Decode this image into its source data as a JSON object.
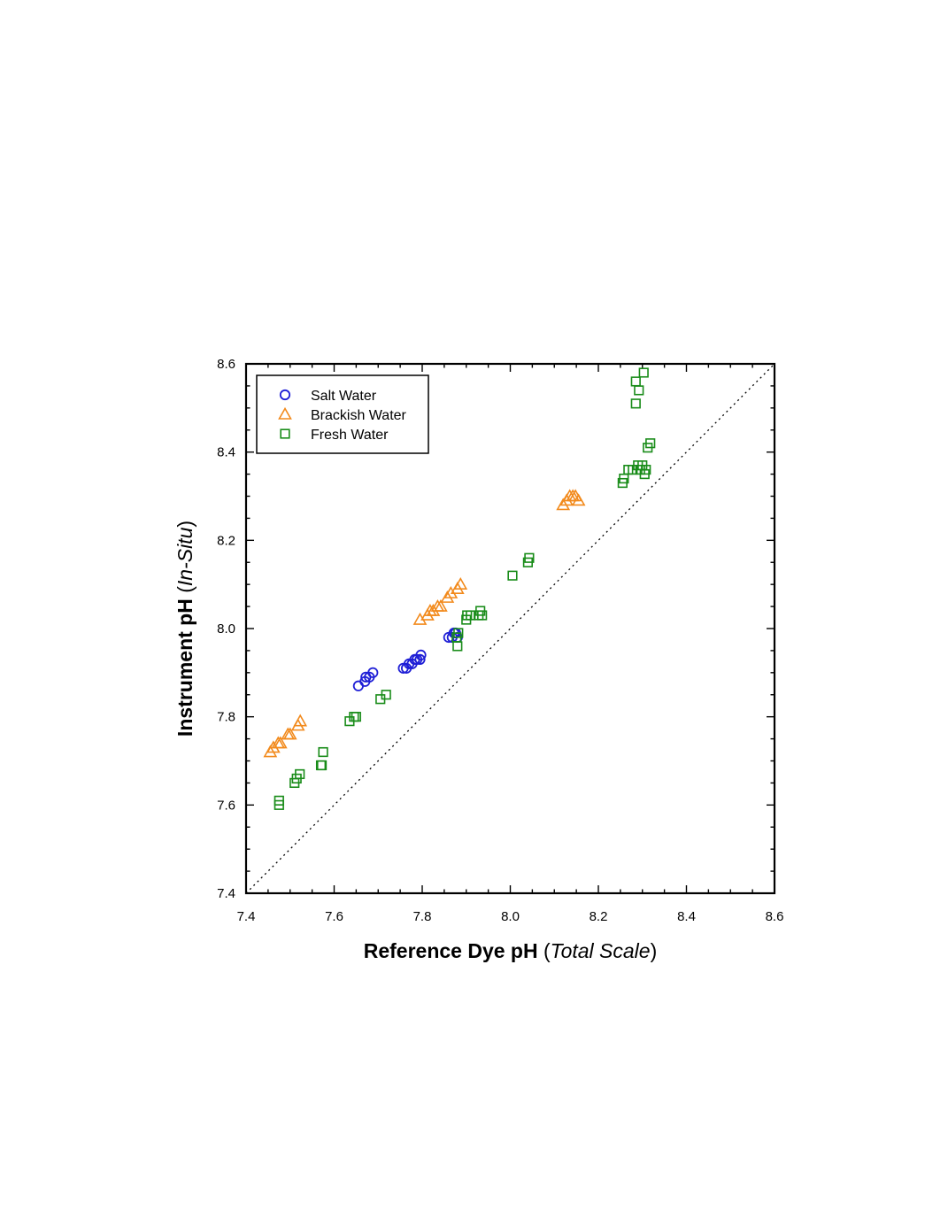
{
  "chart_data": {
    "type": "scatter",
    "title": "",
    "xlabel": {
      "bold": "Reference Dye pH",
      "paren_open": " (",
      "italic": "Total Scale",
      "paren_close": ")"
    },
    "ylabel": {
      "bold": "Instrument pH",
      "paren_open": " (",
      "italic": "In-Situ",
      "paren_close": ")"
    },
    "xlim": [
      7.4,
      8.6
    ],
    "ylim": [
      7.4,
      8.6
    ],
    "x_ticks": [
      "7.4",
      "7.6",
      "7.8",
      "8.0",
      "8.2",
      "8.4",
      "8.6"
    ],
    "y_ticks": [
      "7.4",
      "7.6",
      "7.8",
      "8.0",
      "8.2",
      "8.4",
      "8.6"
    ],
    "grid": false,
    "legend_position": "top-left",
    "reference_line": {
      "style": "dotted",
      "from": [
        7.4,
        7.4
      ],
      "to": [
        8.6,
        8.6
      ]
    },
    "series": [
      {
        "name": "Salt Water",
        "marker": "circle",
        "color": "#1f1fd6",
        "points": [
          [
            7.655,
            7.87
          ],
          [
            7.67,
            7.88
          ],
          [
            7.672,
            7.89
          ],
          [
            7.68,
            7.89
          ],
          [
            7.688,
            7.9
          ],
          [
            7.757,
            7.91
          ],
          [
            7.764,
            7.91
          ],
          [
            7.77,
            7.92
          ],
          [
            7.777,
            7.92
          ],
          [
            7.783,
            7.93
          ],
          [
            7.788,
            7.93
          ],
          [
            7.795,
            7.93
          ],
          [
            7.797,
            7.94
          ],
          [
            7.86,
            7.98
          ],
          [
            7.868,
            7.98
          ],
          [
            7.872,
            7.99
          ],
          [
            7.876,
            7.99
          ],
          [
            7.88,
            7.98
          ]
        ]
      },
      {
        "name": "Brackish Water",
        "marker": "triangle",
        "color": "#f28a1c",
        "points": [
          [
            7.455,
            7.72
          ],
          [
            7.462,
            7.73
          ],
          [
            7.473,
            7.74
          ],
          [
            7.478,
            7.74
          ],
          [
            7.495,
            7.76
          ],
          [
            7.5,
            7.76
          ],
          [
            7.518,
            7.78
          ],
          [
            7.523,
            7.79
          ],
          [
            7.795,
            8.02
          ],
          [
            7.812,
            8.03
          ],
          [
            7.818,
            8.04
          ],
          [
            7.825,
            8.04
          ],
          [
            7.835,
            8.05
          ],
          [
            7.842,
            8.05
          ],
          [
            7.857,
            8.07
          ],
          [
            7.865,
            8.08
          ],
          [
            7.88,
            8.09
          ],
          [
            7.887,
            8.1
          ],
          [
            8.12,
            8.28
          ],
          [
            8.128,
            8.29
          ],
          [
            8.135,
            8.3
          ],
          [
            8.142,
            8.3
          ],
          [
            8.148,
            8.3
          ],
          [
            8.155,
            8.29
          ]
        ]
      },
      {
        "name": "Fresh Water",
        "marker": "square",
        "color": "#198c19",
        "points": [
          [
            7.475,
            7.6
          ],
          [
            7.475,
            7.61
          ],
          [
            7.51,
            7.65
          ],
          [
            7.515,
            7.66
          ],
          [
            7.522,
            7.67
          ],
          [
            7.57,
            7.69
          ],
          [
            7.572,
            7.69
          ],
          [
            7.575,
            7.72
          ],
          [
            7.635,
            7.79
          ],
          [
            7.645,
            7.8
          ],
          [
            7.65,
            7.8
          ],
          [
            7.705,
            7.84
          ],
          [
            7.718,
            7.85
          ],
          [
            7.88,
            7.96
          ],
          [
            7.878,
            7.98
          ],
          [
            7.882,
            7.99
          ],
          [
            7.9,
            8.02
          ],
          [
            7.902,
            8.03
          ],
          [
            7.91,
            8.03
          ],
          [
            7.928,
            8.03
          ],
          [
            7.932,
            8.04
          ],
          [
            7.936,
            8.03
          ],
          [
            8.005,
            8.12
          ],
          [
            8.04,
            8.15
          ],
          [
            8.043,
            8.16
          ],
          [
            8.255,
            8.33
          ],
          [
            8.258,
            8.34
          ],
          [
            8.268,
            8.36
          ],
          [
            8.278,
            8.36
          ],
          [
            8.29,
            8.37
          ],
          [
            8.295,
            8.36
          ],
          [
            8.3,
            8.37
          ],
          [
            8.305,
            8.35
          ],
          [
            8.308,
            8.36
          ],
          [
            8.312,
            8.41
          ],
          [
            8.318,
            8.42
          ],
          [
            8.285,
            8.51
          ],
          [
            8.285,
            8.56
          ],
          [
            8.292,
            8.54
          ],
          [
            8.303,
            8.58
          ]
        ]
      }
    ]
  }
}
